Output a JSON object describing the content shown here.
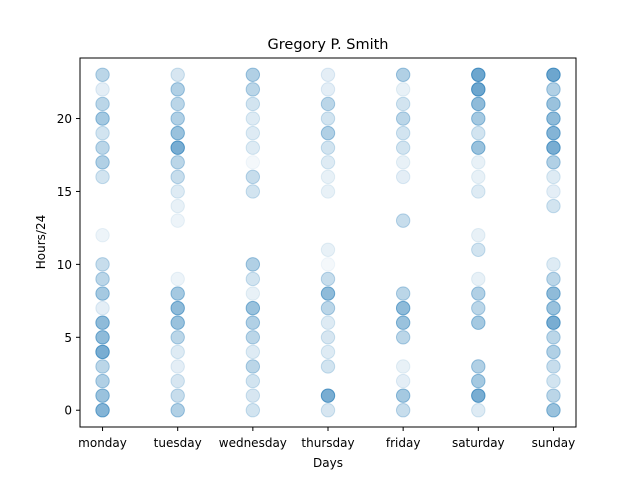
{
  "chart_data": {
    "type": "scatter",
    "title": "Gregory P. Smith",
    "xlabel": "Days",
    "ylabel": "Hours/24",
    "categories": [
      "monday",
      "tuesday",
      "wednesday",
      "thursday",
      "friday",
      "saturday",
      "sunday"
    ],
    "yticks": [
      0,
      5,
      10,
      15,
      20
    ],
    "ylim": [
      -1.15,
      24.15
    ],
    "grid": false,
    "marker_color": "#1f77b4",
    "points": [
      {
        "day": "monday",
        "hour": 0,
        "alpha": 0.55
      },
      {
        "day": "monday",
        "hour": 1,
        "alpha": 0.45
      },
      {
        "day": "monday",
        "hour": 2,
        "alpha": 0.35
      },
      {
        "day": "monday",
        "hour": 3,
        "alpha": 0.3
      },
      {
        "day": "monday",
        "hour": 4,
        "alpha": 0.6
      },
      {
        "day": "monday",
        "hour": 5,
        "alpha": 0.5
      },
      {
        "day": "monday",
        "hour": 6,
        "alpha": 0.5
      },
      {
        "day": "monday",
        "hour": 7,
        "alpha": 0.12
      },
      {
        "day": "monday",
        "hour": 8,
        "alpha": 0.4
      },
      {
        "day": "monday",
        "hour": 9,
        "alpha": 0.3
      },
      {
        "day": "monday",
        "hour": 10,
        "alpha": 0.25
      },
      {
        "day": "monday",
        "hour": 12,
        "alpha": 0.08
      },
      {
        "day": "monday",
        "hour": 16,
        "alpha": 0.2
      },
      {
        "day": "monday",
        "hour": 17,
        "alpha": 0.35
      },
      {
        "day": "monday",
        "hour": 18,
        "alpha": 0.3
      },
      {
        "day": "monday",
        "hour": 19,
        "alpha": 0.2
      },
      {
        "day": "monday",
        "hour": 20,
        "alpha": 0.4
      },
      {
        "day": "monday",
        "hour": 21,
        "alpha": 0.3
      },
      {
        "day": "monday",
        "hour": 22,
        "alpha": 0.12
      },
      {
        "day": "monday",
        "hour": 23,
        "alpha": 0.3
      },
      {
        "day": "tuesday",
        "hour": 0,
        "alpha": 0.35
      },
      {
        "day": "tuesday",
        "hour": 1,
        "alpha": 0.25
      },
      {
        "day": "tuesday",
        "hour": 2,
        "alpha": 0.18
      },
      {
        "day": "tuesday",
        "hour": 3,
        "alpha": 0.12
      },
      {
        "day": "tuesday",
        "hour": 4,
        "alpha": 0.15
      },
      {
        "day": "tuesday",
        "hour": 5,
        "alpha": 0.3
      },
      {
        "day": "tuesday",
        "hour": 6,
        "alpha": 0.45
      },
      {
        "day": "tuesday",
        "hour": 7,
        "alpha": 0.5
      },
      {
        "day": "tuesday",
        "hour": 8,
        "alpha": 0.4
      },
      {
        "day": "tuesday",
        "hour": 9,
        "alpha": 0.08
      },
      {
        "day": "tuesday",
        "hour": 13,
        "alpha": 0.08
      },
      {
        "day": "tuesday",
        "hour": 14,
        "alpha": 0.1
      },
      {
        "day": "tuesday",
        "hour": 15,
        "alpha": 0.15
      },
      {
        "day": "tuesday",
        "hour": 16,
        "alpha": 0.25
      },
      {
        "day": "tuesday",
        "hour": 17,
        "alpha": 0.3
      },
      {
        "day": "tuesday",
        "hour": 18,
        "alpha": 0.6
      },
      {
        "day": "tuesday",
        "hour": 19,
        "alpha": 0.45
      },
      {
        "day": "tuesday",
        "hour": 20,
        "alpha": 0.35
      },
      {
        "day": "tuesday",
        "hour": 21,
        "alpha": 0.3
      },
      {
        "day": "tuesday",
        "hour": 22,
        "alpha": 0.35
      },
      {
        "day": "tuesday",
        "hour": 23,
        "alpha": 0.18
      },
      {
        "day": "wednesday",
        "hour": 0,
        "alpha": 0.2
      },
      {
        "day": "wednesday",
        "hour": 1,
        "alpha": 0.18
      },
      {
        "day": "wednesday",
        "hour": 2,
        "alpha": 0.2
      },
      {
        "day": "wednesday",
        "hour": 3,
        "alpha": 0.3
      },
      {
        "day": "wednesday",
        "hour": 4,
        "alpha": 0.15
      },
      {
        "day": "wednesday",
        "hour": 5,
        "alpha": 0.3
      },
      {
        "day": "wednesday",
        "hour": 6,
        "alpha": 0.35
      },
      {
        "day": "wednesday",
        "hour": 7,
        "alpha": 0.45
      },
      {
        "day": "wednesday",
        "hour": 8,
        "alpha": 0.1
      },
      {
        "day": "wednesday",
        "hour": 9,
        "alpha": 0.2
      },
      {
        "day": "wednesday",
        "hour": 10,
        "alpha": 0.35
      },
      {
        "day": "wednesday",
        "hour": 15,
        "alpha": 0.2
      },
      {
        "day": "wednesday",
        "hour": 16,
        "alpha": 0.25
      },
      {
        "day": "wednesday",
        "hour": 17,
        "alpha": 0.05
      },
      {
        "day": "wednesday",
        "hour": 18,
        "alpha": 0.15
      },
      {
        "day": "wednesday",
        "hour": 19,
        "alpha": 0.15
      },
      {
        "day": "wednesday",
        "hour": 20,
        "alpha": 0.15
      },
      {
        "day": "wednesday",
        "hour": 21,
        "alpha": 0.2
      },
      {
        "day": "wednesday",
        "hour": 22,
        "alpha": 0.3
      },
      {
        "day": "wednesday",
        "hour": 23,
        "alpha": 0.35
      },
      {
        "day": "thursday",
        "hour": 0,
        "alpha": 0.18
      },
      {
        "day": "thursday",
        "hour": 1,
        "alpha": 0.6
      },
      {
        "day": "thursday",
        "hour": 3,
        "alpha": 0.2
      },
      {
        "day": "thursday",
        "hour": 4,
        "alpha": 0.15
      },
      {
        "day": "thursday",
        "hour": 5,
        "alpha": 0.18
      },
      {
        "day": "thursday",
        "hour": 6,
        "alpha": 0.15
      },
      {
        "day": "thursday",
        "hour": 7,
        "alpha": 0.3
      },
      {
        "day": "thursday",
        "hour": 8,
        "alpha": 0.5
      },
      {
        "day": "thursday",
        "hour": 9,
        "alpha": 0.25
      },
      {
        "day": "thursday",
        "hour": 10,
        "alpha": 0.05
      },
      {
        "day": "thursday",
        "hour": 11,
        "alpha": 0.1
      },
      {
        "day": "thursday",
        "hour": 15,
        "alpha": 0.1
      },
      {
        "day": "thursday",
        "hour": 16,
        "alpha": 0.1
      },
      {
        "day": "thursday",
        "hour": 17,
        "alpha": 0.15
      },
      {
        "day": "thursday",
        "hour": 18,
        "alpha": 0.2
      },
      {
        "day": "thursday",
        "hour": 19,
        "alpha": 0.35
      },
      {
        "day": "thursday",
        "hour": 20,
        "alpha": 0.2
      },
      {
        "day": "thursday",
        "hour": 21,
        "alpha": 0.3
      },
      {
        "day": "thursday",
        "hour": 22,
        "alpha": 0.12
      },
      {
        "day": "thursday",
        "hour": 23,
        "alpha": 0.12
      },
      {
        "day": "friday",
        "hour": 0,
        "alpha": 0.25
      },
      {
        "day": "friday",
        "hour": 1,
        "alpha": 0.4
      },
      {
        "day": "friday",
        "hour": 2,
        "alpha": 0.12
      },
      {
        "day": "friday",
        "hour": 3,
        "alpha": 0.1
      },
      {
        "day": "friday",
        "hour": 5,
        "alpha": 0.3
      },
      {
        "day": "friday",
        "hour": 6,
        "alpha": 0.45
      },
      {
        "day": "friday",
        "hour": 7,
        "alpha": 0.5
      },
      {
        "day": "friday",
        "hour": 8,
        "alpha": 0.3
      },
      {
        "day": "friday",
        "hour": 13,
        "alpha": 0.25
      },
      {
        "day": "friday",
        "hour": 16,
        "alpha": 0.12
      },
      {
        "day": "friday",
        "hour": 17,
        "alpha": 0.1
      },
      {
        "day": "friday",
        "hour": 18,
        "alpha": 0.2
      },
      {
        "day": "friday",
        "hour": 19,
        "alpha": 0.2
      },
      {
        "day": "friday",
        "hour": 20,
        "alpha": 0.3
      },
      {
        "day": "friday",
        "hour": 21,
        "alpha": 0.2
      },
      {
        "day": "friday",
        "hour": 22,
        "alpha": 0.1
      },
      {
        "day": "friday",
        "hour": 23,
        "alpha": 0.35
      },
      {
        "day": "saturday",
        "hour": 0,
        "alpha": 0.15
      },
      {
        "day": "saturday",
        "hour": 1,
        "alpha": 0.6
      },
      {
        "day": "saturday",
        "hour": 2,
        "alpha": 0.4
      },
      {
        "day": "saturday",
        "hour": 3,
        "alpha": 0.35
      },
      {
        "day": "saturday",
        "hour": 6,
        "alpha": 0.4
      },
      {
        "day": "saturday",
        "hour": 7,
        "alpha": 0.3
      },
      {
        "day": "saturday",
        "hour": 8,
        "alpha": 0.35
      },
      {
        "day": "saturday",
        "hour": 9,
        "alpha": 0.1
      },
      {
        "day": "saturday",
        "hour": 11,
        "alpha": 0.2
      },
      {
        "day": "saturday",
        "hour": 12,
        "alpha": 0.1
      },
      {
        "day": "saturday",
        "hour": 15,
        "alpha": 0.15
      },
      {
        "day": "saturday",
        "hour": 16,
        "alpha": 0.1
      },
      {
        "day": "saturday",
        "hour": 17,
        "alpha": 0.1
      },
      {
        "day": "saturday",
        "hour": 18,
        "alpha": 0.45
      },
      {
        "day": "saturday",
        "hour": 19,
        "alpha": 0.2
      },
      {
        "day": "saturday",
        "hour": 20,
        "alpha": 0.4
      },
      {
        "day": "saturday",
        "hour": 21,
        "alpha": 0.5
      },
      {
        "day": "saturday",
        "hour": 22,
        "alpha": 0.65
      },
      {
        "day": "saturday",
        "hour": 23,
        "alpha": 0.65
      },
      {
        "day": "sunday",
        "hour": 0,
        "alpha": 0.45
      },
      {
        "day": "sunday",
        "hour": 1,
        "alpha": 0.3
      },
      {
        "day": "sunday",
        "hour": 2,
        "alpha": 0.2
      },
      {
        "day": "sunday",
        "hour": 3,
        "alpha": 0.25
      },
      {
        "day": "sunday",
        "hour": 4,
        "alpha": 0.35
      },
      {
        "day": "sunday",
        "hour": 5,
        "alpha": 0.3
      },
      {
        "day": "sunday",
        "hour": 6,
        "alpha": 0.6
      },
      {
        "day": "sunday",
        "hour": 7,
        "alpha": 0.45
      },
      {
        "day": "sunday",
        "hour": 8,
        "alpha": 0.5
      },
      {
        "day": "sunday",
        "hour": 9,
        "alpha": 0.3
      },
      {
        "day": "sunday",
        "hour": 10,
        "alpha": 0.15
      },
      {
        "day": "sunday",
        "hour": 14,
        "alpha": 0.2
      },
      {
        "day": "sunday",
        "hour": 15,
        "alpha": 0.12
      },
      {
        "day": "sunday",
        "hour": 16,
        "alpha": 0.15
      },
      {
        "day": "sunday",
        "hour": 17,
        "alpha": 0.35
      },
      {
        "day": "sunday",
        "hour": 18,
        "alpha": 0.6
      },
      {
        "day": "sunday",
        "hour": 19,
        "alpha": 0.55
      },
      {
        "day": "sunday",
        "hour": 20,
        "alpha": 0.5
      },
      {
        "day": "sunday",
        "hour": 21,
        "alpha": 0.45
      },
      {
        "day": "sunday",
        "hour": 22,
        "alpha": 0.35
      },
      {
        "day": "sunday",
        "hour": 23,
        "alpha": 0.65
      }
    ]
  }
}
